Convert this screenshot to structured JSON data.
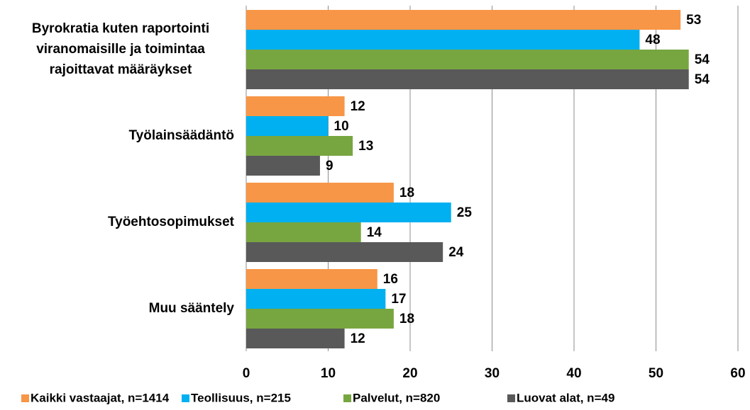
{
  "chart_data": {
    "type": "bar",
    "orientation": "horizontal",
    "categories": [
      "Byrokratia kuten raportointi viranomaisille ja toimintaa rajoittavat määräykset",
      "Työlainsäädäntö",
      "Työehtosopimukset",
      "Muu sääntely"
    ],
    "series": [
      {
        "name": "Kaikki vastaajat, n=1414",
        "color": "#f79646",
        "values": [
          53,
          12,
          18,
          16
        ]
      },
      {
        "name": "Teollisuus, n=215",
        "color": "#00b0f0",
        "values": [
          48,
          10,
          25,
          17
        ]
      },
      {
        "name": "Palvelut, n=820",
        "color": "#77a640",
        "values": [
          54,
          13,
          14,
          18
        ]
      },
      {
        "name": "Luovat alat, n=49",
        "color": "#595959",
        "values": [
          54,
          9,
          24,
          12
        ]
      }
    ],
    "xlim": [
      0,
      60
    ],
    "xticks": [
      0,
      10,
      20,
      30,
      40,
      50,
      60
    ],
    "grid": true,
    "legend": "bottom"
  }
}
